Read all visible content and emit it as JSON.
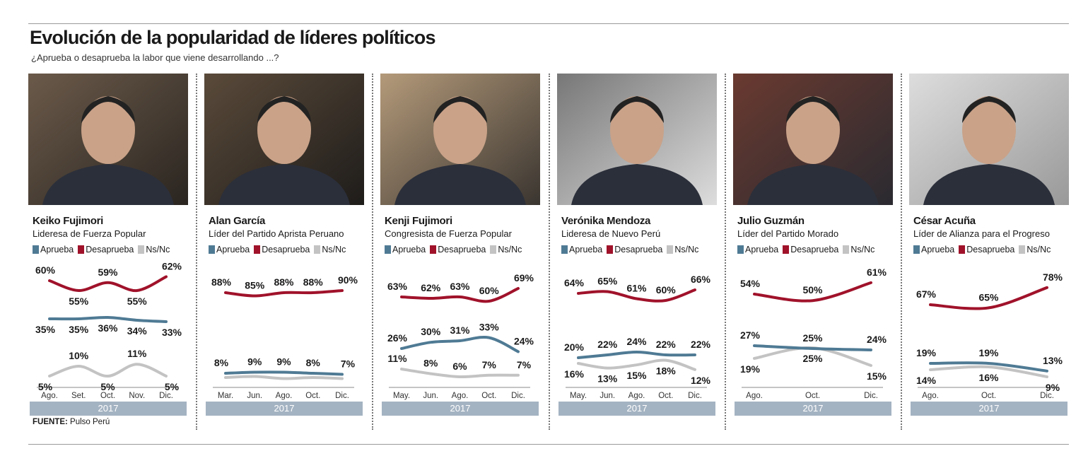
{
  "title": "Evolución de la popularidad de líderes políticos",
  "subtitle": "¿Aprueba o desaprueba la labor que viene desarrollando ...?",
  "source_label": "FUENTE:",
  "source_value": "Pulso Perú",
  "colors": {
    "aprueba": "#4f7a94",
    "desaprueba": "#a0122a",
    "nsnc": "#c3c3c3",
    "year_bar": "#a4b3c2"
  },
  "chart_data": [
    {
      "type": "line",
      "title": "Keiko Fujimori",
      "subtitle": "Lideresa de Fuerza Popular",
      "year": "2017",
      "categories": [
        "Ago.",
        "Set.",
        "Oct.",
        "Nov.",
        "Dic."
      ],
      "legend": [
        "Aprueba",
        "Desaprueba",
        "Ns/Nc"
      ],
      "series": [
        {
          "name": "Aprueba",
          "values": [
            35,
            35,
            36,
            34,
            33
          ]
        },
        {
          "name": "Desaprueba",
          "values": [
            60,
            55,
            59,
            55,
            62
          ]
        },
        {
          "name": "Ns/Nc",
          "values": [
            5,
            10,
            5,
            11,
            5
          ]
        }
      ]
    },
    {
      "type": "line",
      "title": "Alan García",
      "subtitle": "Líder del Partido Aprista Peruano",
      "year": "2017",
      "categories": [
        "Mar.",
        "Jun.",
        "Ago.",
        "Oct.",
        "Dic."
      ],
      "legend": [
        "Aprueba",
        "Desaprueba",
        "Ns/Nc"
      ],
      "series": [
        {
          "name": "Aprueba",
          "values": [
            8,
            9,
            9,
            8,
            7
          ]
        },
        {
          "name": "Desaprueba",
          "values": [
            88,
            85,
            88,
            88,
            90
          ]
        },
        {
          "name": "Ns/Nc",
          "values": [
            4,
            5,
            3,
            4,
            3
          ],
          "labeled": false
        }
      ]
    },
    {
      "type": "line",
      "title": "Kenji Fujimori",
      "subtitle": "Congresista de Fuerza Popular",
      "year": "2017",
      "categories": [
        "May.",
        "Jun.",
        "Ago.",
        "Oct.",
        "Dic."
      ],
      "legend": [
        "Aprueba",
        "Desaprueba",
        "Ns/Nc"
      ],
      "series": [
        {
          "name": "Aprueba",
          "values": [
            26,
            30,
            31,
            33,
            24
          ]
        },
        {
          "name": "Desaprueba",
          "values": [
            63,
            62,
            63,
            60,
            69
          ]
        },
        {
          "name": "Ns/Nc",
          "values": [
            11,
            8,
            6,
            7,
            7
          ]
        }
      ]
    },
    {
      "type": "line",
      "title": "Verónika Mendoza",
      "subtitle": "Lideresa de Nuevo Perú",
      "year": "2017",
      "categories": [
        "May.",
        "Jun.",
        "Ago.",
        "Oct.",
        "Dic."
      ],
      "legend": [
        "Aprueba",
        "Desaprueba",
        "Ns/Nc"
      ],
      "series": [
        {
          "name": "Aprueba",
          "values": [
            20,
            22,
            24,
            22,
            22
          ]
        },
        {
          "name": "Desaprueba",
          "values": [
            64,
            65,
            61,
            60,
            66
          ]
        },
        {
          "name": "Ns/Nc",
          "values": [
            16,
            13,
            15,
            18,
            12
          ]
        }
      ]
    },
    {
      "type": "line",
      "title": "Julio Guzmán",
      "subtitle": "Líder del Partido Morado",
      "year": "2017",
      "categories": [
        "Ago.",
        "Oct.",
        "Dic."
      ],
      "legend": [
        "Aprueba",
        "Desaprueba",
        "Ns/Nc"
      ],
      "series": [
        {
          "name": "Aprueba",
          "values": [
            27,
            25,
            24
          ]
        },
        {
          "name": "Desaprueba",
          "values": [
            54,
            50,
            61
          ]
        },
        {
          "name": "Ns/Nc",
          "values": [
            19,
            25,
            15
          ]
        }
      ]
    },
    {
      "type": "line",
      "title": "César Acuña",
      "subtitle": "Líder de Alianza para el Progreso",
      "year": "2017",
      "categories": [
        "Ago.",
        "Oct.",
        "Dic."
      ],
      "legend": [
        "Aprueba",
        "Desaprueba",
        "Ns/Nc"
      ],
      "series": [
        {
          "name": "Aprueba",
          "values": [
            19,
            19,
            13
          ]
        },
        {
          "name": "Desaprueba",
          "values": [
            67,
            65,
            78
          ]
        },
        {
          "name": "Ns/Nc",
          "values": [
            14,
            16,
            9
          ]
        }
      ]
    }
  ]
}
